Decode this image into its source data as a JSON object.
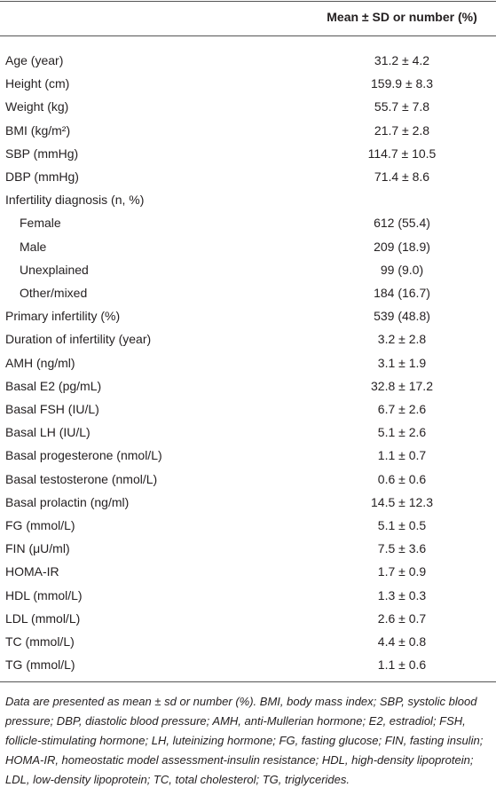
{
  "table": {
    "header": {
      "column": "Mean ± SD or number (%)"
    },
    "rows": [
      {
        "label": "Age (year)",
        "value": "31.2 ± 4.2"
      },
      {
        "label": "Height (cm)",
        "value": "159.9 ± 8.3"
      },
      {
        "label": "Weight (kg)",
        "value": "55.7 ± 7.8"
      },
      {
        "label": "BMI (kg/m²)",
        "value": "21.7 ± 2.8"
      },
      {
        "label": "SBP (mmHg)",
        "value": "114.7 ± 10.5"
      },
      {
        "label": "DBP (mmHg)",
        "value": "71.4 ± 8.6"
      },
      {
        "label": "Infertility diagnosis (n, %)",
        "children": [
          {
            "label": "Female",
            "value": "612 (55.4)"
          },
          {
            "label": "Male",
            "value": "209 (18.9)"
          },
          {
            "label": "Unexplained",
            "value": "99 (9.0)"
          },
          {
            "label": "Other/mixed",
            "value": "184 (16.7)"
          }
        ]
      },
      {
        "label": "Primary infertility (%)",
        "value": "539 (48.8)"
      },
      {
        "label": "Duration of infertility (year)",
        "value": "3.2 ± 2.8"
      },
      {
        "label": "AMH (ng/ml)",
        "value": "3.1 ± 1.9"
      },
      {
        "label": "Basal E2 (pg/mL)",
        "value": "32.8 ± 17.2"
      },
      {
        "label": "Basal FSH (IU/L)",
        "value": "6.7 ± 2.6"
      },
      {
        "label": "Basal LH (IU/L)",
        "value": "5.1 ± 2.6"
      },
      {
        "label": "Basal progesterone (nmol/L)",
        "value": "1.1 ± 0.7"
      },
      {
        "label": "Basal testosterone (nmol/L)",
        "value": "0.6 ± 0.6"
      },
      {
        "label": "Basal prolactin (ng/ml)",
        "value": "14.5 ± 12.3"
      },
      {
        "label": "FG (mmol/L)",
        "value": "5.1 ± 0.5"
      },
      {
        "label": "FIN (μU/ml)",
        "value": "7.5 ± 3.6"
      },
      {
        "label": "HOMA-IR",
        "value": "1.7 ± 0.9"
      },
      {
        "label": "HDL (mmol/L)",
        "value": "1.3 ± 0.3"
      },
      {
        "label": "LDL (mmol/L)",
        "value": "2.6 ± 0.7"
      },
      {
        "label": "TC (mmol/L)",
        "value": "4.4 ± 0.8"
      },
      {
        "label": "TG (mmol/L)",
        "value": "1.1 ± 0.6"
      }
    ],
    "footnote": "Data are presented as mean ± sd or number (%). BMI, body mass index; SBP, systolic blood pressure; DBP, diastolic blood pressure; AMH, anti-Mullerian hormone; E2, estradiol; FSH, follicle-stimulating hormone; LH, luteinizing hormone; FG, fasting glucose; FIN, fasting insulin; HOMA-IR, homeostatic model assessment-insulin resistance; HDL, high-density lipoprotein; LDL, low-density lipoprotein; TC, total cholesterol; TG, triglycerides."
  }
}
